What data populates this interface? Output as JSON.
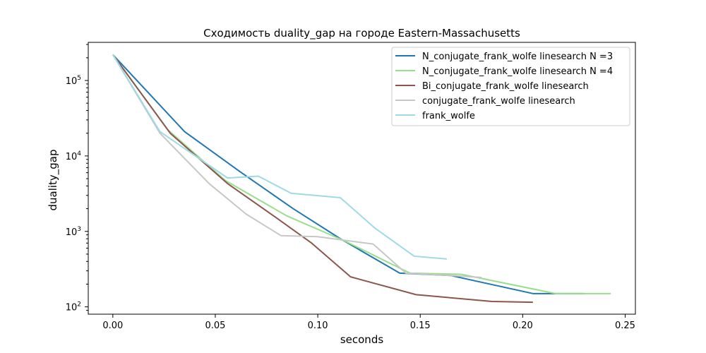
{
  "chart_data": {
    "type": "line",
    "title": "Сходимость duality_gap на городе Eastern-Massachusetts",
    "xlabel": "seconds",
    "ylabel": "duality_gap",
    "xlim": [
      -0.012,
      0.255
    ],
    "ylim": [
      80,
      320000
    ],
    "yscale": "log",
    "xticks": [
      0.0,
      0.05,
      0.1,
      0.15,
      0.2,
      0.25
    ],
    "xtick_labels": [
      "0.00",
      "0.05",
      "0.10",
      "0.15",
      "0.20",
      "0.25"
    ],
    "yticks": [
      100,
      1000,
      10000,
      100000
    ],
    "ytick_labels": [
      {
        "base": "10",
        "exp": "2"
      },
      {
        "base": "10",
        "exp": "3"
      },
      {
        "base": "10",
        "exp": "4"
      },
      {
        "base": "10",
        "exp": "5"
      }
    ],
    "grid": false,
    "legend_position": "top-right",
    "series": [
      {
        "name": "N_conjugate_frank_wolfe linesearch N =3",
        "color": "#1f77b4",
        "x": [
          0.0,
          0.035,
          0.062,
          0.088,
          0.111,
          0.14,
          0.165,
          0.205,
          0.23
        ],
        "y": [
          220000,
          21000,
          6200,
          2000,
          800,
          280,
          260,
          150,
          150
        ]
      },
      {
        "name": "N_conjugate_frank_wolfe linesearch N =4",
        "color": "#98df8a",
        "x": [
          0.0,
          0.027,
          0.055,
          0.085,
          0.113,
          0.145,
          0.17,
          0.216,
          0.243
        ],
        "y": [
          220000,
          22000,
          4700,
          1600,
          750,
          280,
          270,
          150,
          150
        ]
      },
      {
        "name": "Bi_conjugate_frank_wolfe linesearch",
        "color": "#8c564b",
        "x": [
          0.0,
          0.028,
          0.056,
          0.08,
          0.097,
          0.116,
          0.148,
          0.185,
          0.205
        ],
        "y": [
          220000,
          20000,
          4300,
          1500,
          700,
          250,
          145,
          118,
          115
        ]
      },
      {
        "name": "conjugate_frank_wolfe linesearch",
        "color": "#c7c7c7",
        "x": [
          0.0,
          0.023,
          0.047,
          0.065,
          0.082,
          0.1,
          0.127,
          0.143,
          0.165,
          0.18
        ],
        "y": [
          220000,
          20000,
          4300,
          1700,
          880,
          850,
          680,
          280,
          260,
          245
        ]
      },
      {
        "name": "frank_wolfe",
        "color": "#9edae5",
        "x": [
          0.0,
          0.023,
          0.056,
          0.071,
          0.087,
          0.111,
          0.128,
          0.147,
          0.163
        ],
        "y": [
          220000,
          21000,
          5100,
          5400,
          3200,
          2800,
          1100,
          470,
          430
        ]
      }
    ]
  }
}
